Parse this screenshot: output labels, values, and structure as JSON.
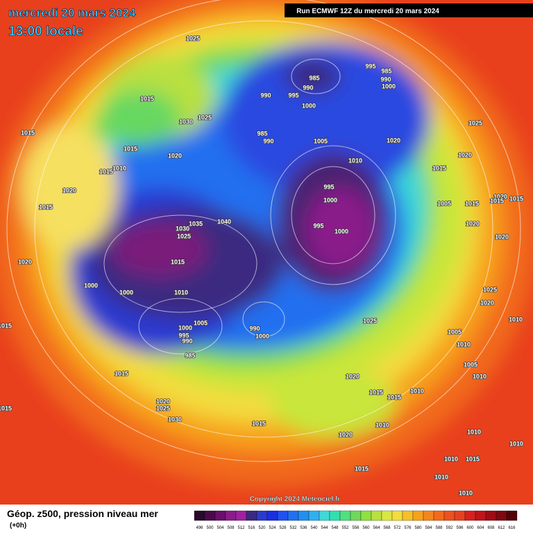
{
  "header": {
    "title": "mercredi 20 mars 2024",
    "subtitle": "13:00 locale",
    "run": "Run ECMWF 12Z du mercredi 20 mars 2024"
  },
  "copyright": "Copyright 2024 Meteociel.fr",
  "footer": {
    "title": "Géop. z500, pression niveau mer",
    "lead": "(+0h)"
  },
  "scale": [
    496,
    500,
    504,
    508,
    512,
    516,
    520,
    524,
    528,
    532,
    536,
    540,
    544,
    548,
    552,
    556,
    560,
    564,
    568,
    572,
    576,
    580,
    584,
    588,
    592,
    596,
    600,
    604,
    608,
    612,
    616
  ],
  "isobar_labels": [
    1025,
    1015,
    1015,
    1030,
    1025,
    1015,
    1015,
    1010,
    1020,
    1020,
    1015,
    1020,
    1000,
    1000,
    1015,
    1030,
    1035,
    1025,
    1040,
    1010,
    1005,
    1000,
    995,
    990,
    985,
    990,
    1000,
    985,
    990,
    990,
    995,
    1000,
    985,
    990,
    1005,
    1010,
    995,
    1000,
    995,
    1000,
    995,
    985,
    990,
    1000,
    1020,
    1025,
    1020,
    1015,
    1005,
    1015,
    1020,
    1015,
    1015,
    1020,
    1020,
    1025,
    1020,
    1025,
    1005,
    1010,
    1010,
    1010,
    1005,
    1020,
    1015,
    1015,
    1010,
    1020,
    1010,
    1015,
    1015,
    1020,
    1025,
    1030,
    1015,
    1015,
    1010,
    1010,
    1015,
    1010,
    1010,
    1015,
    1010
  ]
}
